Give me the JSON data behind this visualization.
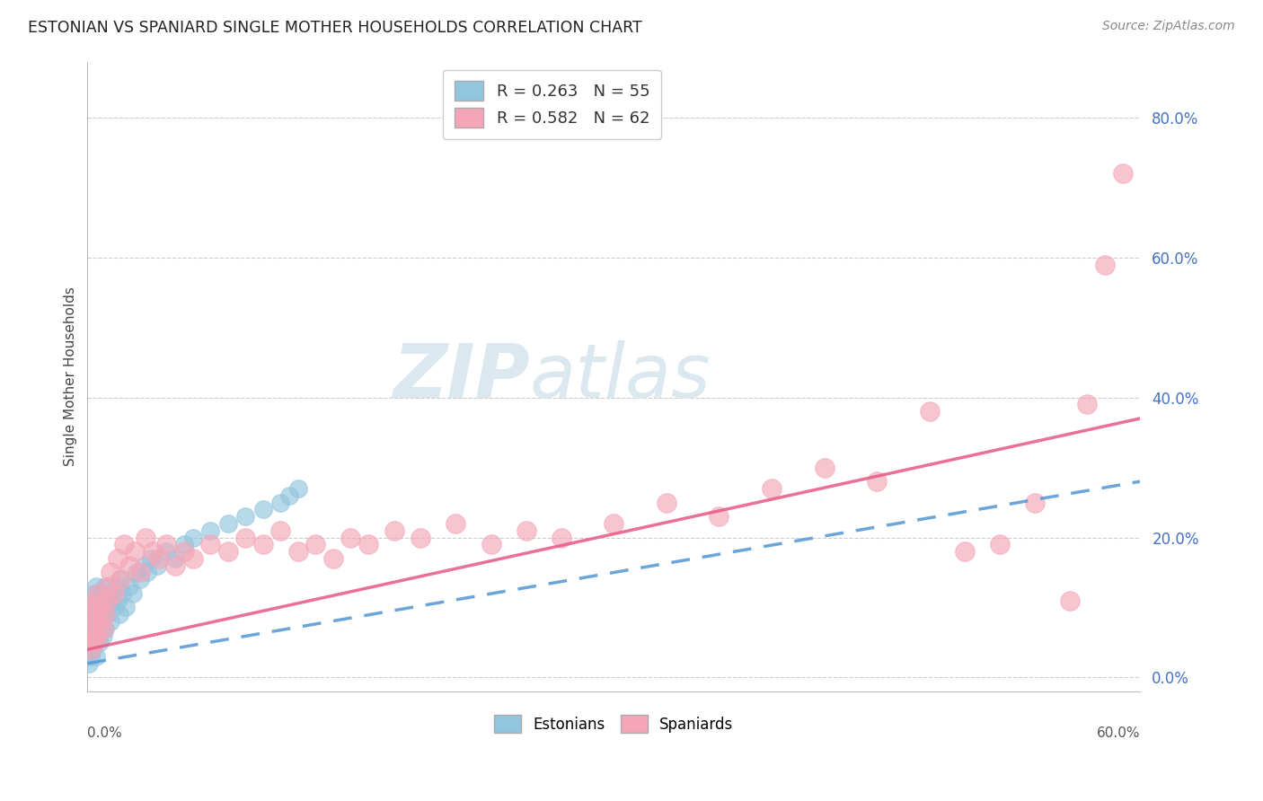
{
  "title": "ESTONIAN VS SPANIARD SINGLE MOTHER HOUSEHOLDS CORRELATION CHART",
  "source": "Source: ZipAtlas.com",
  "ylabel": "Single Mother Households",
  "ytick_labels": [
    "0.0%",
    "20.0%",
    "40.0%",
    "60.0%",
    "80.0%"
  ],
  "ytick_values": [
    0.0,
    0.2,
    0.4,
    0.6,
    0.8
  ],
  "xlim": [
    0.0,
    0.6
  ],
  "ylim": [
    -0.02,
    0.88
  ],
  "estonians_color": "#92c5de",
  "spaniards_color": "#f4a6b8",
  "estonians_line_color": "#5b9bd5",
  "spaniards_line_color": "#e8608a",
  "watermark_color": "#dce8f0",
  "R_estonian": 0.263,
  "N_estonian": 55,
  "R_spaniard": 0.582,
  "N_spaniard": 62,
  "est_line_x": [
    0.0,
    0.6
  ],
  "est_line_y": [
    0.02,
    0.28
  ],
  "spa_line_x": [
    0.0,
    0.6
  ],
  "spa_line_y": [
    0.04,
    0.37
  ],
  "estonian_x": [
    0.001,
    0.001,
    0.002,
    0.002,
    0.002,
    0.003,
    0.003,
    0.003,
    0.004,
    0.004,
    0.004,
    0.005,
    0.005,
    0.005,
    0.005,
    0.006,
    0.006,
    0.007,
    0.007,
    0.008,
    0.008,
    0.009,
    0.009,
    0.01,
    0.01,
    0.011,
    0.012,
    0.013,
    0.014,
    0.015,
    0.016,
    0.017,
    0.018,
    0.019,
    0.02,
    0.022,
    0.024,
    0.026,
    0.028,
    0.03,
    0.032,
    0.034,
    0.036,
    0.04,
    0.045,
    0.05,
    0.055,
    0.06,
    0.07,
    0.08,
    0.09,
    0.1,
    0.11,
    0.115,
    0.12
  ],
  "estonian_y": [
    0.02,
    0.05,
    0.03,
    0.06,
    0.1,
    0.04,
    0.07,
    0.11,
    0.05,
    0.08,
    0.12,
    0.03,
    0.06,
    0.09,
    0.13,
    0.07,
    0.11,
    0.05,
    0.09,
    0.08,
    0.12,
    0.06,
    0.1,
    0.07,
    0.13,
    0.09,
    0.11,
    0.08,
    0.12,
    0.1,
    0.13,
    0.11,
    0.09,
    0.14,
    0.12,
    0.1,
    0.13,
    0.12,
    0.15,
    0.14,
    0.16,
    0.15,
    0.17,
    0.16,
    0.18,
    0.17,
    0.19,
    0.2,
    0.21,
    0.22,
    0.23,
    0.24,
    0.25,
    0.26,
    0.27
  ],
  "spaniard_x": [
    0.001,
    0.002,
    0.002,
    0.003,
    0.003,
    0.004,
    0.004,
    0.005,
    0.005,
    0.006,
    0.006,
    0.007,
    0.008,
    0.009,
    0.01,
    0.011,
    0.012,
    0.013,
    0.015,
    0.017,
    0.019,
    0.021,
    0.024,
    0.027,
    0.03,
    0.033,
    0.037,
    0.041,
    0.045,
    0.05,
    0.055,
    0.06,
    0.07,
    0.08,
    0.09,
    0.1,
    0.11,
    0.12,
    0.13,
    0.14,
    0.15,
    0.16,
    0.175,
    0.19,
    0.21,
    0.23,
    0.25,
    0.27,
    0.3,
    0.33,
    0.36,
    0.39,
    0.42,
    0.45,
    0.48,
    0.5,
    0.52,
    0.54,
    0.56,
    0.57,
    0.58,
    0.59
  ],
  "spaniard_y": [
    0.05,
    0.04,
    0.08,
    0.06,
    0.1,
    0.05,
    0.09,
    0.07,
    0.11,
    0.06,
    0.12,
    0.08,
    0.1,
    0.07,
    0.09,
    0.11,
    0.13,
    0.15,
    0.12,
    0.17,
    0.14,
    0.19,
    0.16,
    0.18,
    0.15,
    0.2,
    0.18,
    0.17,
    0.19,
    0.16,
    0.18,
    0.17,
    0.19,
    0.18,
    0.2,
    0.19,
    0.21,
    0.18,
    0.19,
    0.17,
    0.2,
    0.19,
    0.21,
    0.2,
    0.22,
    0.19,
    0.21,
    0.2,
    0.22,
    0.25,
    0.23,
    0.27,
    0.3,
    0.28,
    0.38,
    0.18,
    0.19,
    0.25,
    0.11,
    0.39,
    0.59,
    0.72
  ]
}
